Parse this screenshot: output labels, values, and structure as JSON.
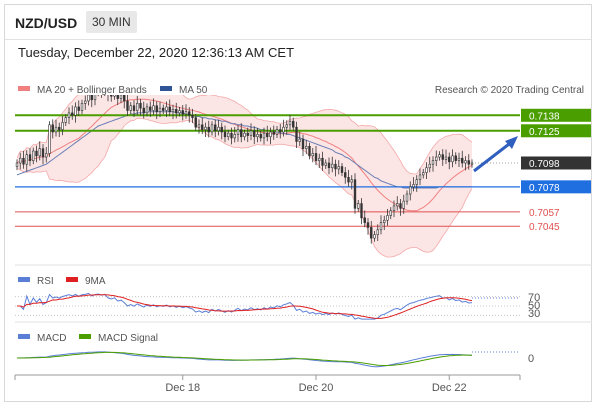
{
  "header": {
    "symbol": "NZD/USD",
    "timeframe": "30 MIN",
    "datetime": "Tuesday, December 22, 2020 12:36:13 AM CET"
  },
  "legend": {
    "bollinger": "MA 20 + Bollinger Bands",
    "ma50": "MA 50",
    "credit": "Research © 2020 Trading Central",
    "rsi": "RSI",
    "rsi_ma": "9MA",
    "macd": "MACD",
    "macd_signal": "MACD Signal"
  },
  "colors": {
    "bollinger": "#f08080",
    "ma50": "#2f5597",
    "resistance": "#4a9e00",
    "support_blue": "#1f6fe0",
    "support_red": "#e05050",
    "current": "#333333",
    "rsi": "#5b7fd6",
    "rsi_ma": "#e02020",
    "macd": "#5b7fd6",
    "macd_signal": "#4a9e00",
    "arrow": "#2f5fbf"
  },
  "chart_data": [
    {
      "type": "candlestick",
      "title": "NZD/USD",
      "ylim": [
        0.7015,
        0.7155
      ],
      "x_ticks": [
        "Dec 18",
        "Dec 20",
        "Dec 22"
      ],
      "levels": [
        {
          "label": "0.7138",
          "value": 0.7138,
          "kind": "resistance"
        },
        {
          "label": "0.7125",
          "value": 0.7125,
          "kind": "resistance"
        },
        {
          "label": "0.7098",
          "value": 0.7098,
          "kind": "current"
        },
        {
          "label": "0.7078",
          "value": 0.7078,
          "kind": "support"
        },
        {
          "label": "0.7057",
          "value": 0.7057,
          "kind": "support"
        },
        {
          "label": "0.7045",
          "value": 0.7045,
          "kind": "support"
        }
      ],
      "close": [
        0.7098,
        0.7102,
        0.7097,
        0.7105,
        0.71,
        0.7108,
        0.7104,
        0.711,
        0.7103,
        0.7106,
        0.713,
        0.7124,
        0.7128,
        0.7126,
        0.7132,
        0.7136,
        0.714,
        0.7138,
        0.7145,
        0.7142,
        0.7148,
        0.715,
        0.7155,
        0.7151,
        0.7157,
        0.716,
        0.7158,
        0.7162,
        0.7156,
        0.7154,
        0.7158,
        0.7152,
        0.7155,
        0.715,
        0.7142,
        0.7146,
        0.7142,
        0.7148,
        0.7144,
        0.714,
        0.7145,
        0.7142,
        0.7146,
        0.7141,
        0.7144,
        0.7142,
        0.7145,
        0.7141,
        0.7143,
        0.714,
        0.7142,
        0.7139,
        0.7141,
        0.7138,
        0.7136,
        0.7128,
        0.713,
        0.7126,
        0.7128,
        0.7124,
        0.713,
        0.7125,
        0.7128,
        0.7124,
        0.712,
        0.7123,
        0.7119,
        0.7122,
        0.7126,
        0.712,
        0.7123,
        0.7121,
        0.7125,
        0.712,
        0.7122,
        0.7119,
        0.7123,
        0.712,
        0.7124,
        0.7122,
        0.7126,
        0.7124,
        0.7128,
        0.713,
        0.7133,
        0.7128,
        0.7116,
        0.7118,
        0.711,
        0.7112,
        0.7104,
        0.7106,
        0.71,
        0.7102,
        0.7096,
        0.7098,
        0.7094,
        0.7097,
        0.7093,
        0.7095,
        0.709,
        0.7086,
        0.7082,
        0.7084,
        0.706,
        0.7064,
        0.7052,
        0.7048,
        0.7044,
        0.7035,
        0.7038,
        0.7042,
        0.7048,
        0.705,
        0.7054,
        0.7058,
        0.7062,
        0.7064,
        0.706,
        0.7066,
        0.7072,
        0.7078,
        0.708,
        0.7084,
        0.7088,
        0.709,
        0.7094,
        0.7097,
        0.71,
        0.7103,
        0.7105,
        0.7101,
        0.7103,
        0.7099,
        0.7104,
        0.71,
        0.7102,
        0.7098,
        0.71,
        0.7097,
        0.7098
      ],
      "ma50": [
        0.7088,
        0.7089,
        0.709,
        0.7091,
        0.7092,
        0.7093,
        0.7094,
        0.7095,
        0.7096,
        0.7097,
        0.7099,
        0.7101,
        0.7103,
        0.7105,
        0.7107,
        0.7109,
        0.7111,
        0.7113,
        0.7115,
        0.7117,
        0.7119,
        0.7121,
        0.7123,
        0.7125,
        0.7127,
        0.7129,
        0.713,
        0.7131,
        0.7132,
        0.7133,
        0.7134,
        0.7135,
        0.7136,
        0.7137,
        0.7138,
        0.7139,
        0.7139,
        0.714,
        0.714,
        0.714,
        0.7141,
        0.7141,
        0.7141,
        0.7141,
        0.7141,
        0.7141,
        0.7141,
        0.7141,
        0.7141,
        0.714,
        0.714,
        0.714,
        0.7139,
        0.7139,
        0.7138,
        0.7137,
        0.7137,
        0.7136,
        0.7136,
        0.7135,
        0.7135,
        0.7134,
        0.7134,
        0.7133,
        0.7133,
        0.7132,
        0.7131,
        0.7131,
        0.713,
        0.713,
        0.7129,
        0.7129,
        0.7128,
        0.7128,
        0.7127,
        0.7126,
        0.7126,
        0.7125,
        0.7125,
        0.7124,
        0.7124,
        0.7123,
        0.7123,
        0.7122,
        0.7122,
        0.7121,
        0.712,
        0.7119,
        0.7118,
        0.7117,
        0.7116,
        0.7115,
        0.7114,
        0.7113,
        0.7112,
        0.7111,
        0.711,
        0.7109,
        0.7107,
        0.7106,
        0.7105,
        0.7103,
        0.7102,
        0.71,
        0.7098,
        0.7096,
        0.7094,
        0.7092,
        0.709,
        0.7088,
        0.7086,
        0.7085,
        0.7083,
        0.7082,
        0.7081,
        0.708,
        0.7079,
        0.7078,
        0.7078,
        0.7077,
        0.7077,
        0.7077,
        0.7077,
        0.7077,
        0.7077,
        0.7077,
        0.7077,
        0.7077,
        0.7077,
        0.7077,
        0.7078,
        0.7078,
        0.7078,
        0.7078,
        0.7078,
        0.7078,
        0.7078,
        0.7078,
        0.7078,
        0.7078,
        0.7078
      ]
    },
    {
      "type": "line",
      "title": "RSI",
      "ylim": [
        20,
        80
      ],
      "y_ticks": [
        70,
        50,
        30
      ]
    },
    {
      "type": "line",
      "title": "MACD",
      "y_ticks": [
        0
      ]
    }
  ]
}
